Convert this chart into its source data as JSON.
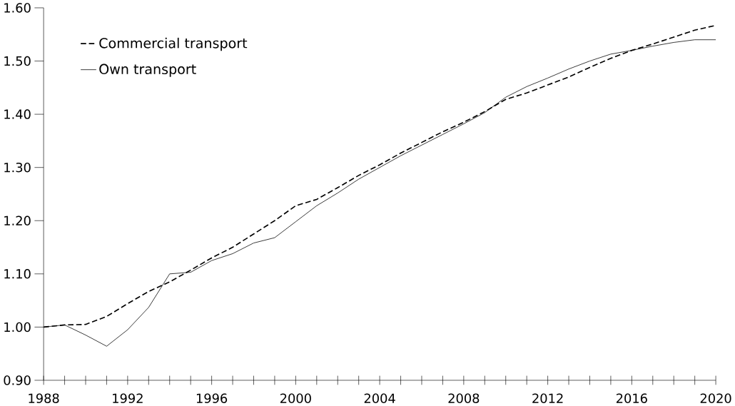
{
  "chart_data": {
    "type": "line",
    "x": [
      1988,
      1989,
      1990,
      1991,
      1992,
      1993,
      1994,
      1995,
      1996,
      1997,
      1998,
      1999,
      2000,
      2001,
      2002,
      2003,
      2004,
      2005,
      2006,
      2007,
      2008,
      2009,
      2010,
      2011,
      2012,
      2013,
      2014,
      2015,
      2016,
      2017,
      2018,
      2019,
      2020
    ],
    "series": [
      {
        "name": "Commercial transport",
        "color": "#000000",
        "line_style": "dashed",
        "values": [
          1.0,
          1.004,
          1.005,
          1.02,
          1.044,
          1.067,
          1.085,
          1.107,
          1.13,
          1.15,
          1.175,
          1.2,
          1.228,
          1.24,
          1.262,
          1.285,
          1.305,
          1.327,
          1.347,
          1.367,
          1.385,
          1.405,
          1.428,
          1.44,
          1.455,
          1.47,
          1.488,
          1.505,
          1.52,
          1.532,
          1.545,
          1.558,
          1.567
        ]
      },
      {
        "name": "Own transport",
        "color": "#000000",
        "line_style": "solid",
        "values": [
          1.0,
          1.004,
          0.985,
          0.964,
          0.995,
          1.037,
          1.1,
          1.103,
          1.125,
          1.138,
          1.158,
          1.168,
          1.198,
          1.228,
          1.252,
          1.278,
          1.3,
          1.322,
          1.342,
          1.362,
          1.382,
          1.403,
          1.432,
          1.452,
          1.468,
          1.485,
          1.5,
          1.513,
          1.52,
          1.528,
          1.535,
          1.54,
          1.54
        ]
      }
    ],
    "xlim": [
      1988,
      2020
    ],
    "ylim": [
      0.9,
      1.6
    ],
    "xticks": [
      {
        "value": 1988,
        "label": "1988"
      },
      {
        "value": 1989,
        "label": null
      },
      {
        "value": 1990,
        "label": null
      },
      {
        "value": 1991,
        "label": null
      },
      {
        "value": 1992,
        "label": "1992"
      },
      {
        "value": 1993,
        "label": null
      },
      {
        "value": 1994,
        "label": null
      },
      {
        "value": 1995,
        "label": null
      },
      {
        "value": 1996,
        "label": "1996"
      },
      {
        "value": 1997,
        "label": null
      },
      {
        "value": 1998,
        "label": null
      },
      {
        "value": 1999,
        "label": null
      },
      {
        "value": 2000,
        "label": "2000"
      },
      {
        "value": 2001,
        "label": null
      },
      {
        "value": 2002,
        "label": null
      },
      {
        "value": 2003,
        "label": null
      },
      {
        "value": 2004,
        "label": "2004"
      },
      {
        "value": 2005,
        "label": null
      },
      {
        "value": 2006,
        "label": null
      },
      {
        "value": 2007,
        "label": null
      },
      {
        "value": 2008,
        "label": "2008"
      },
      {
        "value": 2009,
        "label": null
      },
      {
        "value": 2010,
        "label": null
      },
      {
        "value": 2011,
        "label": null
      },
      {
        "value": 2012,
        "label": "2012"
      },
      {
        "value": 2013,
        "label": null
      },
      {
        "value": 2014,
        "label": null
      },
      {
        "value": 2015,
        "label": null
      },
      {
        "value": 2016,
        "label": "2016"
      },
      {
        "value": 2017,
        "label": null
      },
      {
        "value": 2018,
        "label": null
      },
      {
        "value": 2019,
        "label": null
      },
      {
        "value": 2020,
        "label": "2020"
      }
    ],
    "yticks": [
      {
        "value": 0.9,
        "label": "0.90"
      },
      {
        "value": 1.0,
        "label": "1.00"
      },
      {
        "value": 1.1,
        "label": "1.10"
      },
      {
        "value": 1.2,
        "label": "1.20"
      },
      {
        "value": 1.3,
        "label": "1.30"
      },
      {
        "value": 1.4,
        "label": "1.40"
      },
      {
        "value": 1.5,
        "label": "1.50"
      },
      {
        "value": 1.6,
        "label": "1.60"
      }
    ],
    "legend": "top left",
    "grid": false,
    "marker": "none"
  }
}
